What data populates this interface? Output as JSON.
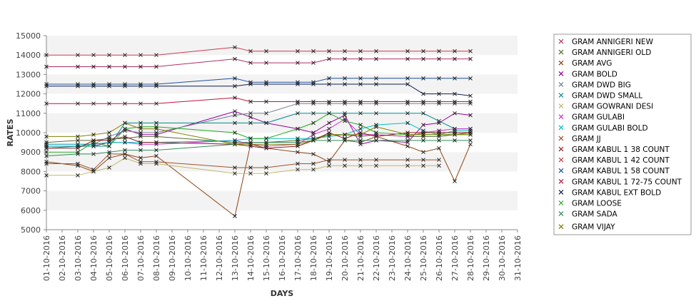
{
  "chart_data": {
    "type": "line",
    "xlabel": "DAYS",
    "ylabel": "RATES",
    "ylim": [
      5000,
      15000
    ],
    "yticks": [
      5000,
      6000,
      7000,
      8000,
      9000,
      10000,
      11000,
      12000,
      13000,
      14000,
      15000
    ],
    "grid": "horizontal bands",
    "legend_position": "right",
    "x": [
      "01-10-2016",
      "02-10-2016",
      "03-10-2016",
      "04-10-2016",
      "05-10-2016",
      "06-10-2016",
      "07-10-2016",
      "08-10-2016",
      "09-10-2016",
      "10-10-2016",
      "11-10-2016",
      "12-10-2016",
      "13-10-2016",
      "14-10-2016",
      "15-10-2016",
      "16-10-2016",
      "17-10-2016",
      "18-10-2016",
      "19-10-2016",
      "20-10-2016",
      "21-10-2016",
      "22-10-2016",
      "23-10-2016",
      "24-10-2016",
      "25-10-2016",
      "26-10-2016",
      "27-10-2016",
      "28-10-2016",
      "29-10-2016",
      "30-10-2016",
      "31-10-2016"
    ],
    "series": [
      {
        "name": "GRAM ANNIGERI NEW",
        "color": "#b03060",
        "values": [
          13400,
          null,
          13400,
          13400,
          13400,
          13400,
          13400,
          13400,
          null,
          null,
          null,
          null,
          13800,
          13600,
          13600,
          null,
          13600,
          13600,
          13800,
          13800,
          13800,
          13800,
          null,
          13800,
          13800,
          13800,
          13800,
          13800,
          null,
          null,
          null
        ]
      },
      {
        "name": "GRAM ANNIGERI OLD",
        "color": "#556b2f",
        "values": [
          9500,
          null,
          9600,
          9600,
          9700,
          9700,
          9800,
          9800,
          null,
          null,
          null,
          null,
          9500,
          9500,
          9500,
          null,
          9600,
          9700,
          9900,
          9900,
          9800,
          9900,
          null,
          9800,
          9800,
          9800,
          9900,
          10000,
          null,
          null,
          null
        ]
      },
      {
        "name": "GRAM AVG",
        "color": "#8b4513",
        "values": [
          8500,
          null,
          8300,
          8000,
          8700,
          8900,
          8700,
          8800,
          null,
          null,
          null,
          null,
          5700,
          9400,
          9200,
          null,
          9000,
          8900,
          8500,
          9600,
          9500,
          9800,
          null,
          9300,
          9000,
          9200,
          7500,
          9400,
          null,
          null,
          null
        ]
      },
      {
        "name": "GRAM BOLD",
        "color": "#990099",
        "values": [
          9300,
          null,
          9300,
          9300,
          9500,
          10200,
          9900,
          9900,
          null,
          null,
          null,
          null,
          11100,
          10800,
          10500,
          null,
          10200,
          10000,
          10500,
          10900,
          9400,
          9600,
          null,
          9500,
          10400,
          10500,
          11000,
          10900,
          null,
          null,
          null
        ]
      },
      {
        "name": "GRAM DWD BIG",
        "color": "#708090",
        "values": [
          9200,
          null,
          9300,
          9400,
          9800,
          10100,
          10000,
          10000,
          null,
          null,
          null,
          null,
          10900,
          11000,
          11000,
          null,
          11500,
          11500,
          11500,
          11500,
          11500,
          11500,
          null,
          11500,
          11500,
          11500,
          11500,
          11500,
          null,
          null,
          null
        ]
      },
      {
        "name": "GRAM DWD SMALL",
        "color": "#008b8b",
        "values": [
          9300,
          null,
          9300,
          9300,
          9300,
          10500,
          10500,
          10500,
          null,
          null,
          null,
          null,
          10500,
          10500,
          10500,
          null,
          11000,
          11000,
          11000,
          11000,
          11000,
          11000,
          null,
          11000,
          11000,
          10600,
          10200,
          10200,
          null,
          null,
          null
        ]
      },
      {
        "name": "GRAM GOWRANI DESI",
        "color": "#bdb76b",
        "values": [
          7800,
          null,
          7800,
          8000,
          8200,
          8700,
          8400,
          8400,
          null,
          null,
          null,
          null,
          7900,
          7900,
          7900,
          null,
          8100,
          8100,
          8300,
          8300,
          8300,
          8300,
          null,
          8300,
          8300,
          8300,
          null,
          null,
          null,
          null,
          null
        ]
      },
      {
        "name": "GRAM GULABI",
        "color": "#cc33cc",
        "values": [
          9400,
          null,
          9400,
          9400,
          9500,
          9500,
          9400,
          9400,
          null,
          null,
          null,
          null,
          9600,
          9400,
          9300,
          null,
          9400,
          9900,
          10200,
          10700,
          9900,
          9900,
          null,
          9800,
          10000,
          10100,
          10200,
          10200,
          null,
          null,
          null
        ]
      },
      {
        "name": "GRAM GULABI BOLD",
        "color": "#00bfbf",
        "values": [
          9400,
          null,
          9400,
          9400,
          9500,
          9500,
          9500,
          9500,
          null,
          null,
          null,
          null,
          9600,
          9700,
          9700,
          null,
          9700,
          9700,
          9800,
          9900,
          10200,
          10400,
          null,
          10500,
          10100,
          9900,
          10100,
          10100,
          null,
          null,
          null
        ]
      },
      {
        "name": "GRAM JJ",
        "color": "#a0522d",
        "values": [
          8400,
          null,
          8400,
          8100,
          8900,
          8900,
          8500,
          8500,
          null,
          null,
          null,
          null,
          8200,
          8200,
          8200,
          null,
          8400,
          8400,
          8600,
          8600,
          8600,
          8600,
          null,
          8600,
          8600,
          8600,
          null,
          null,
          null,
          null,
          null
        ]
      },
      {
        "name": "GRAM KABUL 1 38 COUNT",
        "color": "#8b1a1a",
        "values": [
          9200,
          null,
          9200,
          9600,
          9600,
          9800,
          9500,
          9500,
          null,
          null,
          null,
          null,
          9400,
          9300,
          9200,
          null,
          9300,
          9600,
          10000,
          9700,
          10000,
          9800,
          null,
          10000,
          10000,
          10000,
          10000,
          10000,
          null,
          null,
          null
        ]
      },
      {
        "name": "GRAM KABUL 1 42 COUNT",
        "color": "#cd3a4a",
        "values": [
          14000,
          null,
          14000,
          14000,
          14000,
          14000,
          14000,
          14000,
          null,
          null,
          null,
          null,
          14400,
          14200,
          14200,
          null,
          14200,
          14200,
          14200,
          14200,
          14200,
          14200,
          null,
          14200,
          14200,
          14200,
          14200,
          14200,
          null,
          null,
          null
        ]
      },
      {
        "name": "GRAM KABUL 1 58 COUNT",
        "color": "#1f4fa0",
        "values": [
          12500,
          null,
          12500,
          12500,
          12500,
          12500,
          12500,
          12500,
          null,
          null,
          null,
          null,
          12800,
          12600,
          12600,
          null,
          12600,
          12600,
          12800,
          12800,
          12800,
          12800,
          null,
          12800,
          12800,
          12800,
          12800,
          12800,
          null,
          null,
          null
        ]
      },
      {
        "name": "GRAM KABUL 1 72-75 COUNT",
        "color": "#c0153a",
        "values": [
          11500,
          null,
          11500,
          11500,
          11500,
          11500,
          11500,
          11500,
          null,
          null,
          null,
          null,
          11800,
          11600,
          11600,
          null,
          11600,
          11600,
          11600,
          11600,
          11600,
          11600,
          null,
          11600,
          11600,
          11600,
          11600,
          11600,
          null,
          null,
          null
        ]
      },
      {
        "name": "GRAM KABUL EXT BOLD",
        "color": "#102050",
        "values": [
          12400,
          null,
          12400,
          12400,
          12400,
          12400,
          12400,
          12400,
          null,
          null,
          null,
          null,
          12400,
          12500,
          12500,
          null,
          12500,
          12500,
          12500,
          12500,
          12500,
          12500,
          null,
          12500,
          12000,
          12000,
          12000,
          11900,
          null,
          null,
          null
        ]
      },
      {
        "name": "GRAM LOOSE",
        "color": "#22aa22",
        "values": [
          9000,
          null,
          9000,
          9500,
          9300,
          10200,
          10300,
          10300,
          null,
          null,
          null,
          null,
          10000,
          9700,
          9700,
          null,
          10200,
          10500,
          11000,
          10600,
          10400,
          10000,
          null,
          9900,
          9900,
          9900,
          9900,
          9900,
          null,
          null,
          null
        ]
      },
      {
        "name": "GRAM SADA",
        "color": "#2e8b57",
        "values": [
          8800,
          null,
          8900,
          8900,
          9000,
          9100,
          9100,
          9100,
          null,
          null,
          null,
          null,
          9400,
          9500,
          9500,
          null,
          9500,
          9600,
          9600,
          9600,
          9600,
          9600,
          null,
          9600,
          9600,
          9600,
          9600,
          9600,
          null,
          null,
          null
        ]
      },
      {
        "name": "GRAM VIJAY",
        "color": "#808000",
        "values": [
          9800,
          null,
          9800,
          9900,
          10000,
          10500,
          10200,
          10200,
          null,
          null,
          null,
          null,
          9400,
          9400,
          9400,
          null,
          9400,
          9600,
          9900,
          9900,
          9900,
          10300,
          null,
          9900,
          9900,
          9900,
          9900,
          9900,
          null,
          null,
          null
        ]
      }
    ]
  }
}
